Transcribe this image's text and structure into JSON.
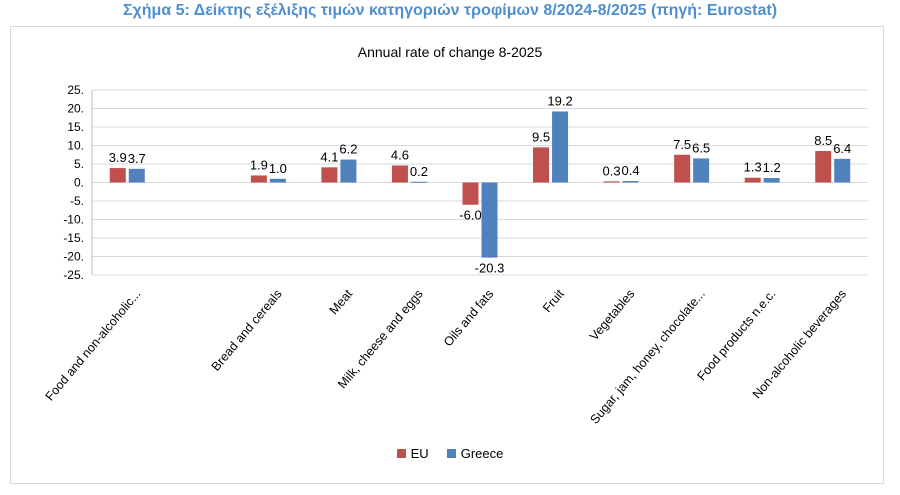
{
  "figure_title": "Σχήμα 5: Δείκτης εξέλιξης τιμών κατηγοριών τροφίμων 8/2024-8/2025 (πηγή: Eurostat)",
  "colors": {
    "EU": "#c0504d",
    "Greece": "#4f81bd",
    "title": "#4f8fcf"
  },
  "chart_data": {
    "type": "bar",
    "title": "Annual rate of change 8-2025",
    "ylim": [
      -25,
      25
    ],
    "yticks": [
      "25.",
      "20.",
      "15.",
      "10.",
      "5.",
      "0.",
      "-5.",
      "-10.",
      "-15.",
      "-20.",
      "-25."
    ],
    "ytick_values": [
      25,
      20,
      15,
      10,
      5,
      0,
      -5,
      -10,
      -15,
      -20,
      -25
    ],
    "grid": true,
    "legend_position": "bottom",
    "categories": [
      "Food and non-alcoholic...",
      "",
      "Bread and cereals",
      "Meat",
      "Milk, cheese and eggs",
      "Oils and fats",
      "Fruit",
      "Vegetables",
      "Sugar, jam, honey, chocolate...",
      "Food products n.e.c.",
      "Non-alcoholic beverages"
    ],
    "series": [
      {
        "name": "EU",
        "values": [
          3.9,
          null,
          1.9,
          4.1,
          4.6,
          -6.0,
          9.5,
          0.3,
          7.5,
          1.3,
          8.5
        ]
      },
      {
        "name": "Greece",
        "values": [
          3.7,
          null,
          1.0,
          6.2,
          0.2,
          -20.3,
          19.2,
          0.4,
          6.5,
          1.2,
          6.4
        ]
      }
    ],
    "data_labels": [
      [
        "3.9",
        "3.7"
      ],
      [
        "",
        ""
      ],
      [
        "1.9",
        "1.0"
      ],
      [
        "4.1",
        "6.2"
      ],
      [
        "4.6",
        "0.2"
      ],
      [
        "-6.0",
        "-20.3"
      ],
      [
        "9.5",
        "19.2"
      ],
      [
        "0.3",
        "0.4"
      ],
      [
        "7.5",
        "6.5"
      ],
      [
        "1.3",
        "1.2"
      ],
      [
        "8.5",
        "6.4"
      ]
    ]
  }
}
